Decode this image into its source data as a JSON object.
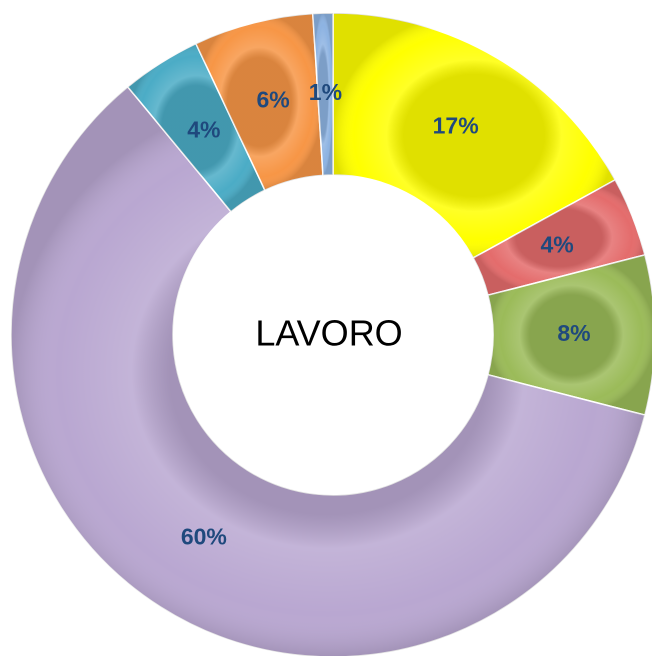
{
  "chart_data": {
    "type": "donut",
    "title": "LAVORO",
    "values": [
      17,
      4,
      8,
      60,
      4,
      6,
      1
    ],
    "value_labels": [
      "17%",
      "4%",
      "8%",
      "60%",
      "4%",
      "6%",
      "1%"
    ],
    "colors": [
      "#ffff00",
      "#e46c6c",
      "#9bbb59",
      "#b9a7d1",
      "#4bacc6",
      "#f79646",
      "#8db3e2"
    ],
    "label_color": "#1f497d"
  }
}
